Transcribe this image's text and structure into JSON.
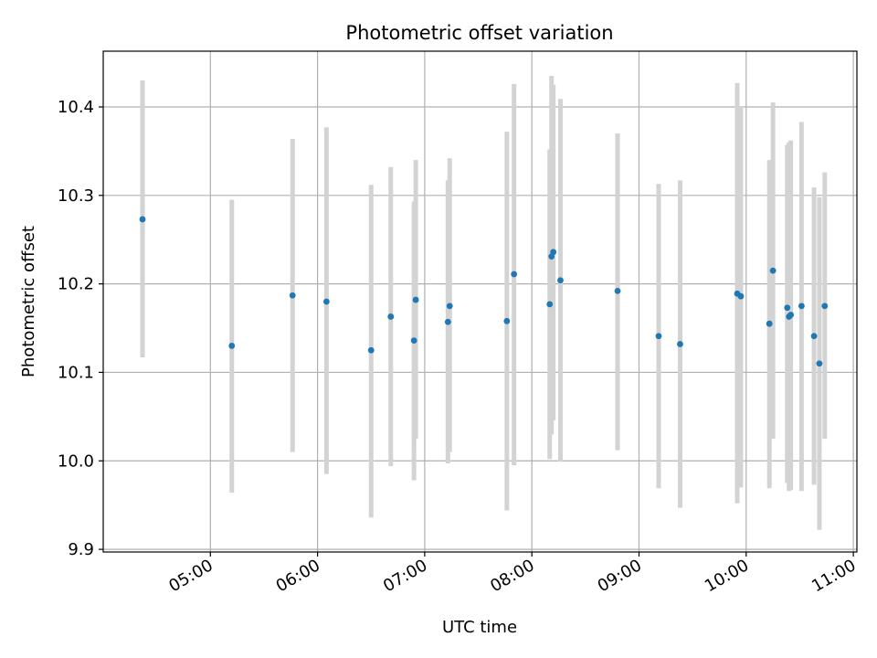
{
  "chart_data": {
    "type": "scatter",
    "title": "Photometric offset variation",
    "xlabel": "UTC time",
    "ylabel": "Photometric offset",
    "grid": true,
    "colors": {
      "points": "#1f77b4",
      "errorbars": "#d3d3d3",
      "grid": "#b0b0b0",
      "axes": "#000000"
    },
    "xlim": [
      "04:00",
      "11:02"
    ],
    "ylim": [
      9.897,
      10.463
    ],
    "xticks": [
      "05:00",
      "06:00",
      "07:00",
      "08:00",
      "09:00",
      "10:00",
      "11:00"
    ],
    "yticks": [
      "9.9",
      "10.0",
      "10.1",
      "10.2",
      "10.3",
      "10.4"
    ],
    "series": [
      {
        "x": [
          "04:22",
          "05:12",
          "05:46",
          "06:05",
          "06:30",
          "06:41",
          "06:54",
          "06:55",
          "07:13",
          "07:14",
          "07:46",
          "07:50",
          "08:10",
          "08:11",
          "08:12",
          "08:16",
          "08:48",
          "09:11",
          "09:23",
          "09:55",
          "09:57",
          "10:13",
          "10:15",
          "10:23",
          "10:24",
          "10:25",
          "10:31",
          "10:38",
          "10:41",
          "10:44"
        ],
        "y": [
          10.273,
          10.13,
          10.187,
          10.18,
          10.125,
          10.163,
          10.136,
          10.182,
          10.157,
          10.175,
          10.158,
          10.211,
          10.177,
          10.231,
          10.236,
          10.204,
          10.192,
          10.141,
          10.132,
          10.189,
          10.186,
          10.155,
          10.215,
          10.173,
          10.163,
          10.165,
          10.175,
          10.141,
          10.11,
          10.175
        ],
        "ylow": [
          10.117,
          9.964,
          10.01,
          9.985,
          9.936,
          9.994,
          9.978,
          10.025,
          9.997,
          10.01,
          9.944,
          9.995,
          10.002,
          10.03,
          10.046,
          9.999,
          10.012,
          9.969,
          9.947,
          9.952,
          9.97,
          9.969,
          10.025,
          9.975,
          9.966,
          9.967,
          9.966,
          9.973,
          9.922,
          10.025
        ],
        "yhigh": [
          10.43,
          10.295,
          10.364,
          10.377,
          10.312,
          10.332,
          10.293,
          10.34,
          10.317,
          10.342,
          10.372,
          10.426,
          10.352,
          10.435,
          10.425,
          10.409,
          10.37,
          10.313,
          10.317,
          10.427,
          10.4,
          10.34,
          10.405,
          10.357,
          10.36,
          10.362,
          10.383,
          10.309,
          10.298,
          10.326
        ]
      }
    ]
  }
}
